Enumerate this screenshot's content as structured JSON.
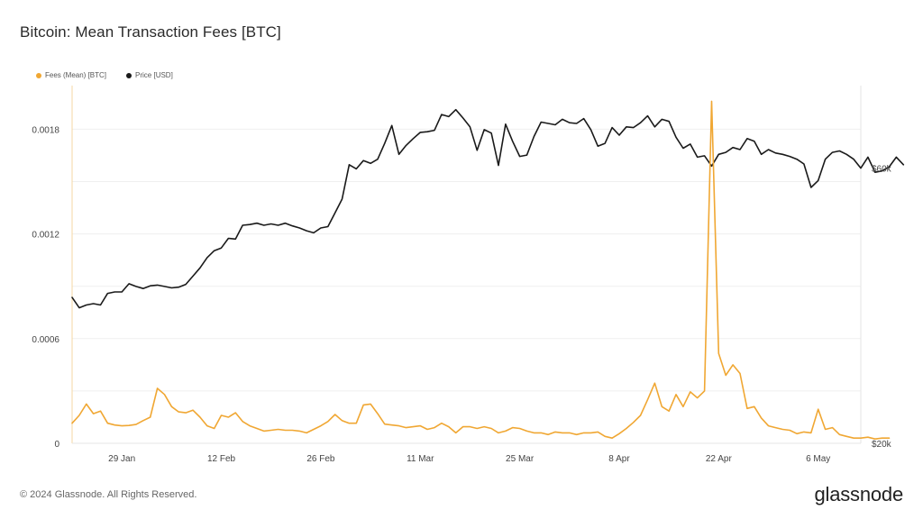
{
  "title": "Bitcoin: Mean Transaction Fees [BTC]",
  "footer": "© 2024 Glassnode. All Rights Reserved.",
  "brand": "glassnode",
  "colors": {
    "fees": "#f0a733",
    "price": "#1a1a1a",
    "grid": "#efefef",
    "axis_line": "#f6d7a3"
  },
  "legend": [
    {
      "label": "Fees (Mean) [BTC]",
      "color": "#f0a733"
    },
    {
      "label": "Price [USD]",
      "color": "#1a1a1a"
    }
  ],
  "chart_data": {
    "type": "line",
    "x_ticks": [
      {
        "label": "29 Jan",
        "date": "2024-01-29"
      },
      {
        "label": "12 Feb",
        "date": "2024-02-12"
      },
      {
        "label": "26 Feb",
        "date": "2024-02-26"
      },
      {
        "label": "11 Mar",
        "date": "2024-03-11"
      },
      {
        "label": "25 Mar",
        "date": "2024-03-25"
      },
      {
        "label": "8 Apr",
        "date": "2024-04-08"
      },
      {
        "label": "22 Apr",
        "date": "2024-04-22"
      },
      {
        "label": "6 May",
        "date": "2024-05-06"
      }
    ],
    "x_range": [
      "2024-01-22",
      "2024-05-12"
    ],
    "y_left": {
      "range": [
        0,
        0.00205
      ],
      "ticks": [
        {
          "value": 0,
          "label": "0"
        },
        {
          "value": 0.0006,
          "label": "0.0006"
        },
        {
          "value": 0.0012,
          "label": "0.0012"
        },
        {
          "value": 0.0018,
          "label": "0.0018"
        }
      ]
    },
    "y_right": {
      "range": [
        20000,
        72000
      ],
      "ticks": [
        {
          "value": 20000,
          "label": "$20k"
        },
        {
          "value": 60000,
          "label": "$60k"
        }
      ]
    },
    "grid": true,
    "legend_position": "top-left",
    "series": [
      {
        "name": "Fees (Mean) [BTC]",
        "axis": "left",
        "color": "#f0a733",
        "points": [
          [
            "2024-01-22",
            0.000115
          ],
          [
            "2024-01-23",
            0.00016
          ],
          [
            "2024-01-24",
            0.000225
          ],
          [
            "2024-01-25",
            0.00017
          ],
          [
            "2024-01-26",
            0.000185
          ],
          [
            "2024-01-27",
            0.000115
          ],
          [
            "2024-01-28",
            0.000105
          ],
          [
            "2024-01-29",
            0.0001
          ],
          [
            "2024-01-30",
            0.000102
          ],
          [
            "2024-01-31",
            0.000108
          ],
          [
            "2024-02-01",
            0.00013
          ],
          [
            "2024-02-02",
            0.00015
          ],
          [
            "2024-02-03",
            0.000315
          ],
          [
            "2024-02-04",
            0.00028
          ],
          [
            "2024-02-05",
            0.00021
          ],
          [
            "2024-02-06",
            0.00018
          ],
          [
            "2024-02-07",
            0.000175
          ],
          [
            "2024-02-08",
            0.00019
          ],
          [
            "2024-02-09",
            0.00015
          ],
          [
            "2024-02-10",
            0.0001
          ],
          [
            "2024-02-11",
            8.5e-05
          ],
          [
            "2024-02-12",
            0.00016
          ],
          [
            "2024-02-13",
            0.00015
          ],
          [
            "2024-02-14",
            0.000175
          ],
          [
            "2024-02-15",
            0.000125
          ],
          [
            "2024-02-16",
            0.0001
          ],
          [
            "2024-02-17",
            8.5e-05
          ],
          [
            "2024-02-18",
            7e-05
          ],
          [
            "2024-02-19",
            7.5e-05
          ],
          [
            "2024-02-20",
            8e-05
          ],
          [
            "2024-02-21",
            7.5e-05
          ],
          [
            "2024-02-22",
            7.5e-05
          ],
          [
            "2024-02-23",
            7e-05
          ],
          [
            "2024-02-24",
            6e-05
          ],
          [
            "2024-02-25",
            8e-05
          ],
          [
            "2024-02-26",
            0.0001
          ],
          [
            "2024-02-27",
            0.000125
          ],
          [
            "2024-02-28",
            0.000165
          ],
          [
            "2024-02-29",
            0.00013
          ],
          [
            "2024-03-01",
            0.000115
          ],
          [
            "2024-03-02",
            0.000115
          ],
          [
            "2024-03-03",
            0.00022
          ],
          [
            "2024-03-04",
            0.000225
          ],
          [
            "2024-03-05",
            0.00017
          ],
          [
            "2024-03-06",
            0.00011
          ],
          [
            "2024-03-07",
            0.000105
          ],
          [
            "2024-03-08",
            0.0001
          ],
          [
            "2024-03-09",
            9e-05
          ],
          [
            "2024-03-10",
            9.5e-05
          ],
          [
            "2024-03-11",
            0.0001
          ],
          [
            "2024-03-12",
            8e-05
          ],
          [
            "2024-03-13",
            9e-05
          ],
          [
            "2024-03-14",
            0.000115
          ],
          [
            "2024-03-15",
            9.5e-05
          ],
          [
            "2024-03-16",
            6e-05
          ],
          [
            "2024-03-17",
            9.5e-05
          ],
          [
            "2024-03-18",
            9.5e-05
          ],
          [
            "2024-03-19",
            8.5e-05
          ],
          [
            "2024-03-20",
            9.5e-05
          ],
          [
            "2024-03-21",
            8.5e-05
          ],
          [
            "2024-03-22",
            6e-05
          ],
          [
            "2024-03-23",
            7e-05
          ],
          [
            "2024-03-24",
            9e-05
          ],
          [
            "2024-03-25",
            8.5e-05
          ],
          [
            "2024-03-26",
            7e-05
          ],
          [
            "2024-03-27",
            6e-05
          ],
          [
            "2024-03-28",
            6e-05
          ],
          [
            "2024-03-29",
            5e-05
          ],
          [
            "2024-03-30",
            6.5e-05
          ],
          [
            "2024-03-31",
            6e-05
          ],
          [
            "2024-04-01",
            6e-05
          ],
          [
            "2024-04-02",
            5e-05
          ],
          [
            "2024-04-03",
            6e-05
          ],
          [
            "2024-04-04",
            6e-05
          ],
          [
            "2024-04-05",
            6.5e-05
          ],
          [
            "2024-04-06",
            4e-05
          ],
          [
            "2024-04-07",
            3e-05
          ],
          [
            "2024-04-08",
            5.5e-05
          ],
          [
            "2024-04-09",
            8.5e-05
          ],
          [
            "2024-04-10",
            0.00012
          ],
          [
            "2024-04-11",
            0.00016
          ],
          [
            "2024-04-12",
            0.00025
          ],
          [
            "2024-04-13",
            0.000345
          ],
          [
            "2024-04-14",
            0.00021
          ],
          [
            "2024-04-15",
            0.000185
          ],
          [
            "2024-04-16",
            0.00028
          ],
          [
            "2024-04-17",
            0.00021
          ],
          [
            "2024-04-18",
            0.000295
          ],
          [
            "2024-04-19",
            0.00026
          ],
          [
            "2024-04-20",
            0.0003
          ],
          [
            "2024-04-21",
            0.00196
          ],
          [
            "2024-04-22",
            0.000515
          ],
          [
            "2024-04-23",
            0.00039
          ],
          [
            "2024-04-24",
            0.00045
          ],
          [
            "2024-04-25",
            0.0004
          ],
          [
            "2024-04-26",
            0.0002
          ],
          [
            "2024-04-27",
            0.00021
          ],
          [
            "2024-04-28",
            0.000145
          ],
          [
            "2024-04-29",
            0.0001
          ],
          [
            "2024-04-30",
            9e-05
          ],
          [
            "2024-05-01",
            8e-05
          ],
          [
            "2024-05-02",
            7.5e-05
          ],
          [
            "2024-05-03",
            5.5e-05
          ],
          [
            "2024-05-04",
            6.5e-05
          ],
          [
            "2024-05-05",
            6e-05
          ],
          [
            "2024-05-06",
            0.000195
          ],
          [
            "2024-05-07",
            8e-05
          ],
          [
            "2024-05-08",
            9e-05
          ],
          [
            "2024-05-09",
            5e-05
          ],
          [
            "2024-05-10",
            4e-05
          ],
          [
            "2024-05-11",
            3e-05
          ],
          [
            "2024-05-12",
            3e-05
          ],
          [
            "2024-05-13",
            3.5e-05
          ],
          [
            "2024-05-14",
            2.5e-05
          ],
          [
            "2024-05-15",
            3e-05
          ],
          [
            "2024-05-16",
            3e-05
          ]
        ]
      },
      {
        "name": "Price [USD]",
        "axis": "right",
        "color": "#1a1a1a",
        "points": [
          [
            "2024-01-22",
            41200
          ],
          [
            "2024-01-23",
            39700
          ],
          [
            "2024-01-24",
            40100
          ],
          [
            "2024-01-25",
            40300
          ],
          [
            "2024-01-26",
            40100
          ],
          [
            "2024-01-27",
            41800
          ],
          [
            "2024-01-28",
            42000
          ],
          [
            "2024-01-29",
            42000
          ],
          [
            "2024-01-30",
            43200
          ],
          [
            "2024-01-31",
            42800
          ],
          [
            "2024-02-01",
            42500
          ],
          [
            "2024-02-02",
            42900
          ],
          [
            "2024-02-03",
            43000
          ],
          [
            "2024-02-04",
            42800
          ],
          [
            "2024-02-05",
            42600
          ],
          [
            "2024-02-06",
            42700
          ],
          [
            "2024-02-07",
            43100
          ],
          [
            "2024-02-08",
            44300
          ],
          [
            "2024-02-09",
            45500
          ],
          [
            "2024-02-10",
            47000
          ],
          [
            "2024-02-11",
            48000
          ],
          [
            "2024-02-12",
            48400
          ],
          [
            "2024-02-13",
            49800
          ],
          [
            "2024-02-14",
            49700
          ],
          [
            "2024-02-15",
            51700
          ],
          [
            "2024-02-16",
            51800
          ],
          [
            "2024-02-17",
            52000
          ],
          [
            "2024-02-18",
            51700
          ],
          [
            "2024-02-19",
            51900
          ],
          [
            "2024-02-20",
            51700
          ],
          [
            "2024-02-21",
            52000
          ],
          [
            "2024-02-22",
            51600
          ],
          [
            "2024-02-23",
            51300
          ],
          [
            "2024-02-24",
            50900
          ],
          [
            "2024-02-25",
            50600
          ],
          [
            "2024-02-26",
            51300
          ],
          [
            "2024-02-27",
            51500
          ],
          [
            "2024-02-28",
            53500
          ],
          [
            "2024-02-29",
            55500
          ],
          [
            "2024-03-01",
            60500
          ],
          [
            "2024-03-02",
            59900
          ],
          [
            "2024-03-03",
            61100
          ],
          [
            "2024-03-04",
            60700
          ],
          [
            "2024-03-05",
            61300
          ],
          [
            "2024-03-06",
            63600
          ],
          [
            "2024-03-07",
            66200
          ],
          [
            "2024-03-08",
            62000
          ],
          [
            "2024-03-09",
            63300
          ],
          [
            "2024-03-10",
            64300
          ],
          [
            "2024-03-11",
            65200
          ],
          [
            "2024-03-12",
            65300
          ],
          [
            "2024-03-13",
            65500
          ],
          [
            "2024-03-14",
            67800
          ],
          [
            "2024-03-15",
            67500
          ],
          [
            "2024-03-16",
            68500
          ],
          [
            "2024-03-17",
            67300
          ],
          [
            "2024-03-18",
            66000
          ],
          [
            "2024-03-19",
            62600
          ],
          [
            "2024-03-20",
            65600
          ],
          [
            "2024-03-21",
            65100
          ],
          [
            "2024-03-22",
            60400
          ],
          [
            "2024-03-23",
            66400
          ],
          [
            "2024-03-24",
            63900
          ],
          [
            "2024-03-25",
            61700
          ],
          [
            "2024-03-26",
            61900
          ],
          [
            "2024-03-27",
            64600
          ],
          [
            "2024-03-28",
            66700
          ],
          [
            "2024-03-29",
            66500
          ],
          [
            "2024-03-30",
            66300
          ],
          [
            "2024-03-31",
            67100
          ],
          [
            "2024-04-01",
            66600
          ],
          [
            "2024-04-02",
            66500
          ],
          [
            "2024-04-03",
            67200
          ],
          [
            "2024-04-04",
            65600
          ],
          [
            "2024-04-05",
            63200
          ],
          [
            "2024-04-06",
            63600
          ],
          [
            "2024-04-07",
            65900
          ],
          [
            "2024-04-08",
            64800
          ],
          [
            "2024-04-09",
            66000
          ],
          [
            "2024-04-10",
            65900
          ],
          [
            "2024-04-11",
            66600
          ],
          [
            "2024-04-12",
            67600
          ],
          [
            "2024-04-13",
            66000
          ],
          [
            "2024-04-14",
            67100
          ],
          [
            "2024-04-15",
            66800
          ],
          [
            "2024-04-16",
            64500
          ],
          [
            "2024-04-17",
            62900
          ],
          [
            "2024-04-18",
            63500
          ],
          [
            "2024-04-19",
            61600
          ],
          [
            "2024-04-20",
            61800
          ],
          [
            "2024-04-21",
            60300
          ],
          [
            "2024-04-22",
            62000
          ],
          [
            "2024-04-23",
            62300
          ],
          [
            "2024-04-24",
            63000
          ],
          [
            "2024-04-25",
            62700
          ],
          [
            "2024-04-26",
            64300
          ],
          [
            "2024-04-27",
            63900
          ],
          [
            "2024-04-28",
            62000
          ],
          [
            "2024-04-29",
            62700
          ],
          [
            "2024-04-30",
            62200
          ],
          [
            "2024-05-01",
            62000
          ],
          [
            "2024-05-02",
            61700
          ],
          [
            "2024-05-03",
            61300
          ],
          [
            "2024-05-04",
            60600
          ],
          [
            "2024-05-05",
            57200
          ],
          [
            "2024-05-06",
            58200
          ],
          [
            "2024-05-07",
            61300
          ],
          [
            "2024-05-08",
            62300
          ],
          [
            "2024-05-09",
            62500
          ],
          [
            "2024-05-10",
            62000
          ],
          [
            "2024-05-11",
            61300
          ],
          [
            "2024-05-12",
            60000
          ],
          [
            "2024-05-13",
            61600
          ],
          [
            "2024-05-14",
            59400
          ],
          [
            "2024-05-15",
            59600
          ],
          [
            "2024-05-16",
            60200
          ],
          [
            "2024-05-17",
            61600
          ],
          [
            "2024-05-18",
            60500
          ]
        ]
      }
    ]
  }
}
